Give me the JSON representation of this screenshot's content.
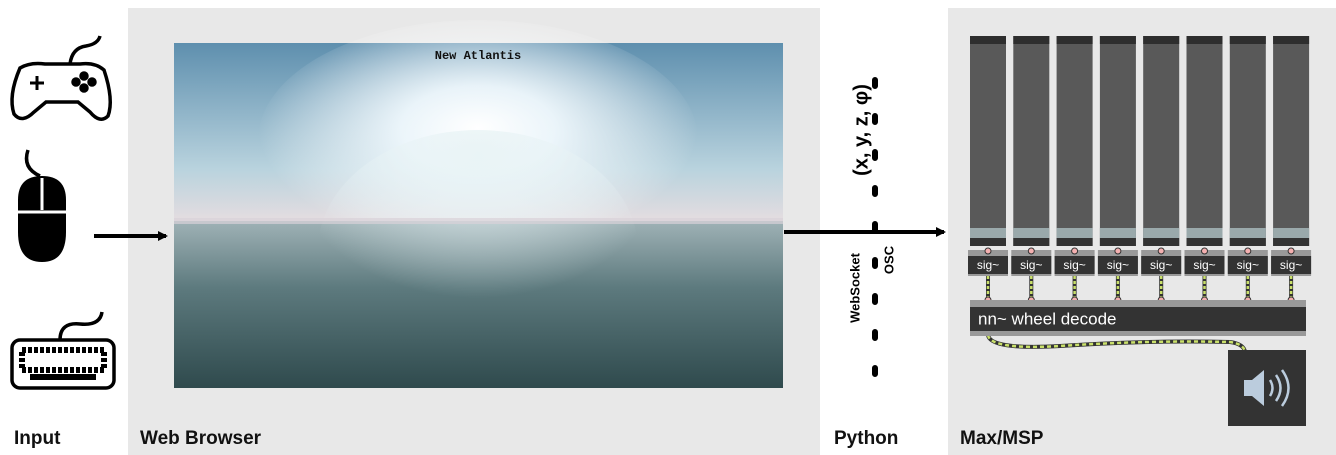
{
  "labels": {
    "input": "Input",
    "browser": "Web Browser",
    "python": "Python",
    "max": "Max/MSP"
  },
  "browser": {
    "title": "New Atlantis"
  },
  "python": {
    "message": "(x, y, z, φ)",
    "protocol_a": "WebSocket",
    "protocol_b": "OSC"
  },
  "max": {
    "sig_objects": [
      "sig~",
      "sig~",
      "sig~",
      "sig~",
      "sig~",
      "sig~",
      "sig~",
      "sig~"
    ],
    "decoder": "nn~ wheel decode"
  }
}
